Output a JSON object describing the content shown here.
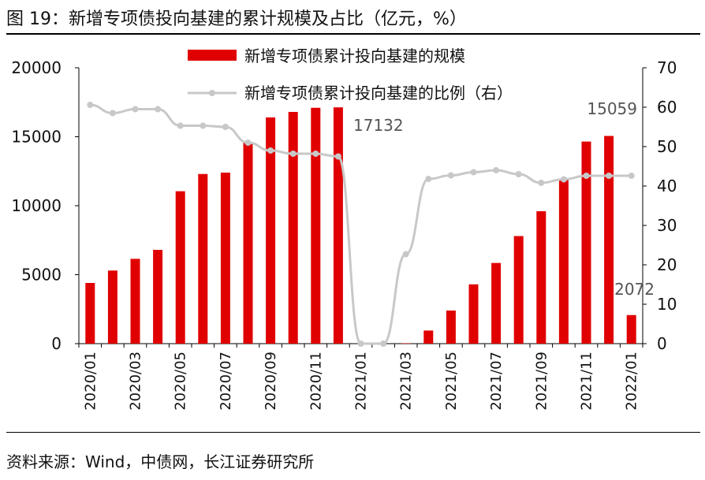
{
  "title": "图 19：新增专项债投向基建的累计规模及占比（亿元，%）",
  "source": "资料来源：Wind，中债网，长江证券研究所",
  "colors": {
    "bar": "#e00000",
    "line": "#c8c8c8",
    "marker": "#c8c8c8",
    "axis": "#000000"
  },
  "chart_data": {
    "type": "bar",
    "categories": [
      "2020/01",
      "2020/02",
      "2020/03",
      "2020/04",
      "2020/05",
      "2020/06",
      "2020/07",
      "2020/08",
      "2020/09",
      "2020/10",
      "2020/11",
      "2020/12",
      "2021/01",
      "2021/02",
      "2021/03",
      "2021/04",
      "2021/05",
      "2021/06",
      "2021/07",
      "2021/08",
      "2021/09",
      "2021/10",
      "2021/11",
      "2021/12",
      "2022/01"
    ],
    "x_tick_labels": [
      "2020/01",
      "2020/03",
      "2020/05",
      "2020/07",
      "2020/09",
      "2020/11",
      "2021/01",
      "2021/03",
      "2021/05",
      "2021/07",
      "2021/09",
      "2021/11",
      "2022/01"
    ],
    "series": [
      {
        "name": "新增专项债累计投向基建的规模",
        "type": "bar",
        "axis": "left",
        "values": [
          4400,
          5300,
          6150,
          6800,
          11050,
          12300,
          12400,
          14600,
          16400,
          16800,
          17100,
          17132,
          0,
          0,
          30,
          950,
          2400,
          4300,
          5850,
          7800,
          9600,
          11900,
          14650,
          15059,
          2072
        ]
      },
      {
        "name": "新增专项债累计投向基建的比例（右）",
        "type": "line",
        "axis": "right",
        "values": [
          60.6,
          58.5,
          59.5,
          59.5,
          55.3,
          55.3,
          55.0,
          51.0,
          49.0,
          48.2,
          48.2,
          47.5,
          0,
          0,
          22.7,
          41.8,
          42.7,
          43.5,
          44.0,
          43.0,
          40.8,
          41.7,
          42.6,
          42.6,
          42.6
        ]
      }
    ],
    "left_axis": {
      "ylim": [
        0,
        20000
      ],
      "ticks": [
        "0",
        "5000",
        "10000",
        "15000",
        "20000"
      ]
    },
    "right_axis": {
      "ylim": [
        0,
        70
      ],
      "ticks": [
        "0",
        "10",
        "20",
        "30",
        "40",
        "50",
        "60",
        "70"
      ]
    },
    "annotations": [
      {
        "text": "17132",
        "index": 11,
        "series": 0
      },
      {
        "text": "15059",
        "index": 23,
        "series": 0
      },
      {
        "text": "2072",
        "index": 24,
        "series": 0
      }
    ],
    "legend_position": "top"
  }
}
